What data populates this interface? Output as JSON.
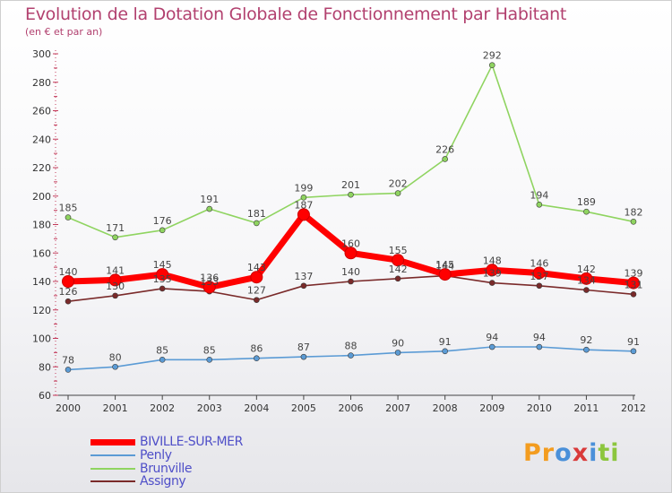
{
  "chart_data": {
    "type": "line",
    "title": "Evolution de la Dotation Globale de Fonctionnement par Habitant",
    "subtitle": "(en € et par an)",
    "x": [
      "2000",
      "2001",
      "2002",
      "2003",
      "2004",
      "2005",
      "2006",
      "2007",
      "2008",
      "2009",
      "2010",
      "2011",
      "2012"
    ],
    "ylim": [
      60,
      300
    ],
    "yticks": [
      60,
      80,
      100,
      120,
      140,
      160,
      180,
      200,
      220,
      240,
      260,
      280,
      300
    ],
    "grid": false,
    "legend_position": "bottom-left",
    "series": [
      {
        "name": "BIVILLE-SUR-MER",
        "color": "#ff0000",
        "values": [
          140,
          141,
          145,
          136,
          143,
          187,
          160,
          155,
          145,
          148,
          146,
          142,
          139
        ],
        "labels": [
          "140",
          "141",
          "145",
          "136",
          "143",
          "187",
          "160",
          "155",
          "145",
          "148",
          "146",
          "142",
          "139"
        ]
      },
      {
        "name": "Penly",
        "color": "#5b9bd5",
        "values": [
          78,
          80,
          85,
          85,
          86,
          87,
          88,
          90,
          91,
          94,
          94,
          92,
          91
        ],
        "labels": [
          "78",
          "80",
          "85",
          "85",
          "86",
          "87",
          "88",
          "90",
          "91",
          "94",
          "94",
          "92",
          "91"
        ]
      },
      {
        "name": "Brunville",
        "color": "#8fd460",
        "values": [
          185,
          171,
          176,
          191,
          181,
          199,
          201,
          202,
          226,
          292,
          194,
          189,
          182
        ],
        "labels": [
          "185",
          "171",
          "176",
          "191",
          "181",
          "199",
          "201",
          "202",
          "226",
          "292",
          "194",
          "189",
          "182"
        ]
      },
      {
        "name": "Assigny",
        "color": "#7a2a2a",
        "values": [
          126,
          130,
          135,
          133,
          127,
          137,
          140,
          142,
          144,
          139,
          137,
          134,
          131
        ],
        "labels": [
          "126",
          "130",
          "135",
          "133",
          "127",
          "137",
          "140",
          "142",
          "144",
          "139",
          "137",
          "134",
          "131"
        ]
      }
    ]
  },
  "logo": {
    "text": "Proxiti",
    "letters": [
      "P",
      "r",
      "o",
      "x",
      "i",
      "t",
      "i"
    ],
    "colors": [
      "#f39c1f",
      "#f39c1f",
      "#4a90d9",
      "#d93a3a",
      "#4a90d9",
      "#8cc63e",
      "#8cc63e"
    ]
  }
}
